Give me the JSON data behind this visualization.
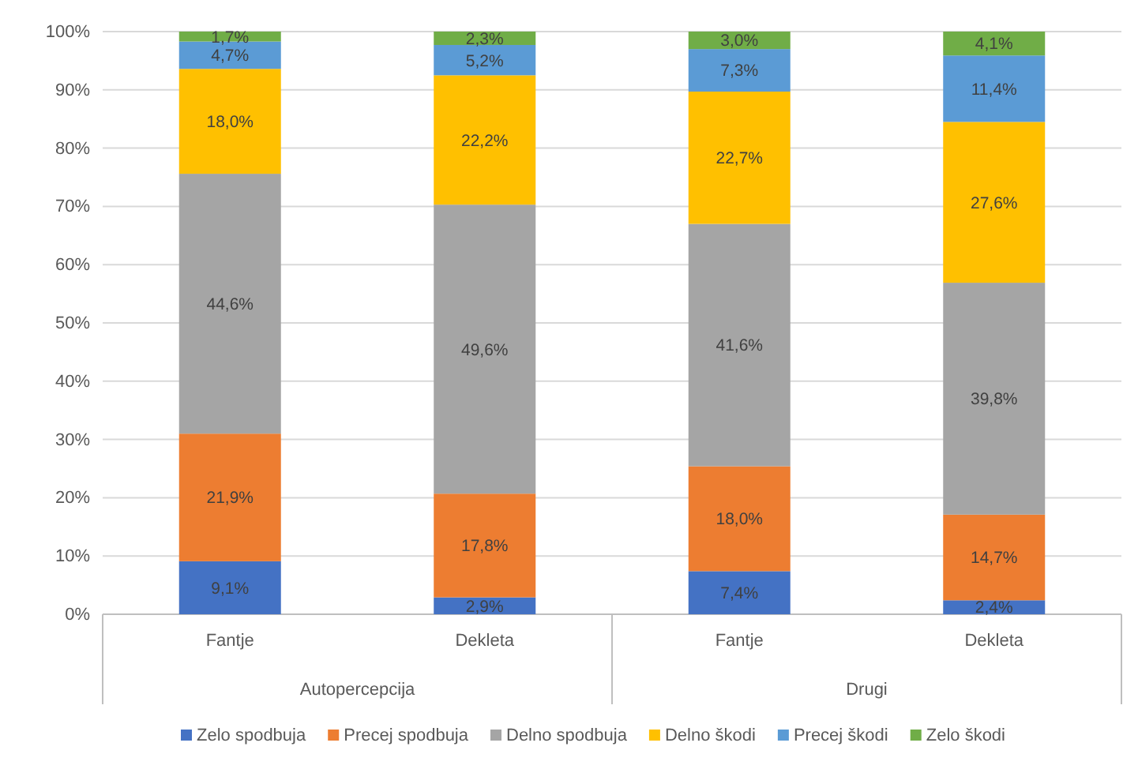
{
  "chart_data": {
    "type": "bar",
    "stacked": true,
    "categories": [
      "Fantje",
      "Dekleta",
      "Fantje",
      "Dekleta"
    ],
    "series": [
      {
        "name": "Zelo spodbuja",
        "color": "#4472c4",
        "values": [
          9.1,
          2.9,
          7.4,
          2.4
        ],
        "value_labels": [
          "9,1%",
          "2,9%",
          "7,4%",
          "2,4%"
        ]
      },
      {
        "name": "Precej spodbuja",
        "color": "#ed7d31",
        "values": [
          21.9,
          17.8,
          18.0,
          14.7
        ],
        "value_labels": [
          "21,9%",
          "17,8%",
          "18,0%",
          "14,7%"
        ]
      },
      {
        "name": "Delno spodbuja",
        "color": "#a5a5a5",
        "values": [
          44.6,
          49.6,
          41.6,
          39.8
        ],
        "value_labels": [
          "44,6%",
          "49,6%",
          "41,6%",
          "39,8%"
        ]
      },
      {
        "name": "Delno škodi",
        "color": "#ffc000",
        "values": [
          18.0,
          22.2,
          22.7,
          27.6
        ],
        "value_labels": [
          "18,0%",
          "22,2%",
          "22,7%",
          "27,6%"
        ]
      },
      {
        "name": "Precej škodi",
        "color": "#5b9bd5",
        "values": [
          4.7,
          5.2,
          7.3,
          11.4
        ],
        "value_labels": [
          "4,7%",
          "5,2%",
          "7,3%",
          "11,4%"
        ]
      },
      {
        "name": "Zelo škodi",
        "color": "#70ad47",
        "values": [
          1.7,
          2.3,
          3.0,
          4.1
        ],
        "value_labels": [
          "1,7%",
          "2,3%",
          "3,0%",
          "4,1%"
        ]
      }
    ],
    "ylim": [
      0,
      100
    ],
    "yticks": [
      {
        "value": 0,
        "label": "0%"
      },
      {
        "value": 10,
        "label": "10%"
      },
      {
        "value": 20,
        "label": "20%"
      },
      {
        "value": 30,
        "label": "30%"
      },
      {
        "value": 40,
        "label": "40%"
      },
      {
        "value": 50,
        "label": "50%"
      },
      {
        "value": 60,
        "label": "60%"
      },
      {
        "value": 70,
        "label": "70%"
      },
      {
        "value": 80,
        "label": "80%"
      },
      {
        "value": 90,
        "label": "90%"
      },
      {
        "value": 100,
        "label": "100%"
      }
    ],
    "grid": "y",
    "legend": "bottom",
    "annotations": [
      "Autopercepcija",
      "Drugi"
    ]
  }
}
